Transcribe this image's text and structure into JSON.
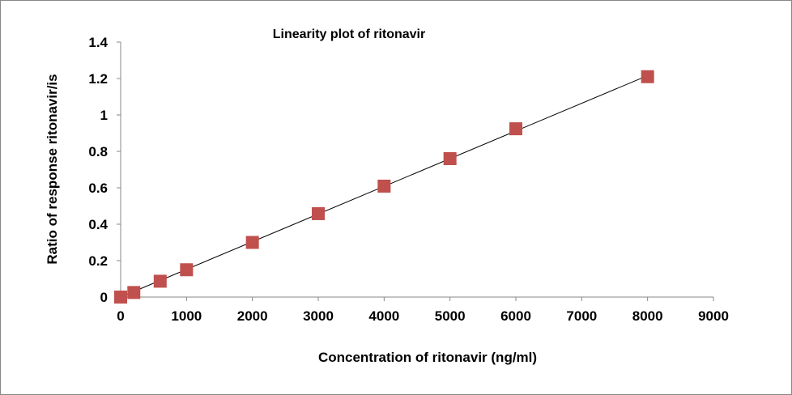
{
  "chart_data": {
    "type": "scatter",
    "title": "Linearity plot of ritonavir",
    "xlabel": "Concentration of ritonavir (ng/ml)",
    "ylabel": "Ratio of response ritonavir/is",
    "xlim": [
      0,
      9000
    ],
    "ylim": [
      0,
      1.4
    ],
    "xticks": [
      0,
      1000,
      2000,
      3000,
      4000,
      5000,
      6000,
      7000,
      8000,
      9000
    ],
    "yticks": [
      0,
      0.2,
      0.4,
      0.6,
      0.8,
      1,
      1.2,
      1.4
    ],
    "ytick_labels": [
      "0",
      "0.2",
      "0.4",
      "0.6",
      "0.8",
      "1",
      "1.2",
      "1.4"
    ],
    "grid": false,
    "legend": "none",
    "marker_color": "#C0504D",
    "points": [
      {
        "x": 0,
        "y": 0
      },
      {
        "x": 200,
        "y": 0.025
      },
      {
        "x": 600,
        "y": 0.087
      },
      {
        "x": 1000,
        "y": 0.15
      },
      {
        "x": 2000,
        "y": 0.3
      },
      {
        "x": 3000,
        "y": 0.458
      },
      {
        "x": 4000,
        "y": 0.609
      },
      {
        "x": 5000,
        "y": 0.76
      },
      {
        "x": 6000,
        "y": 0.924
      },
      {
        "x": 8000,
        "y": 1.21
      }
    ],
    "trendline": {
      "type": "linear",
      "x_range": [
        0,
        8000
      ],
      "slope": 0.000152,
      "intercept": 0
    }
  }
}
